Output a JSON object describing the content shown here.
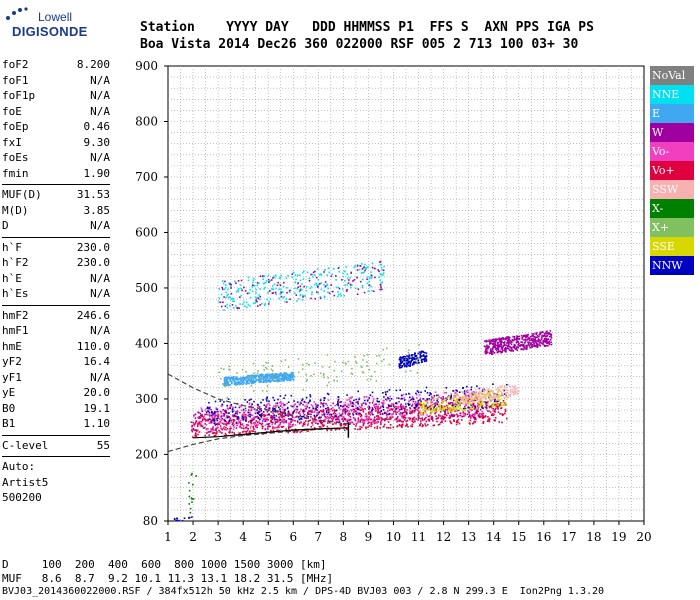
{
  "logo": {
    "line1": "Lowell",
    "line2": "DIGISONDE"
  },
  "header": {
    "row1": "Station    YYYY DAY   DDD HHMMSS P1  FFS S  AXN PPS IGA PS",
    "row2": "Boa Vista 2014 Dec26 360 022000 RSF 005 2 713 100 03+ 30"
  },
  "params": {
    "group1": [
      {
        "name": "foF2",
        "value": "8.200"
      },
      {
        "name": "foF1",
        "value": "N/A"
      },
      {
        "name": "foF1p",
        "value": "N/A"
      },
      {
        "name": "foE",
        "value": "N/A"
      },
      {
        "name": "foEp",
        "value": "0.46"
      },
      {
        "name": "fxI",
        "value": "9.30"
      },
      {
        "name": "foEs",
        "value": "N/A"
      },
      {
        "name": "fmin",
        "value": "1.90"
      }
    ],
    "group2": [
      {
        "name": "MUF(D)",
        "value": "31.53"
      },
      {
        "name": "M(D)",
        "value": "3.85"
      },
      {
        "name": "D",
        "value": "N/A"
      }
    ],
    "group3": [
      {
        "name": "h`F",
        "value": "230.0"
      },
      {
        "name": "h`F2",
        "value": "230.0"
      },
      {
        "name": "h`E",
        "value": "N/A"
      },
      {
        "name": "h`Es",
        "value": "N/A"
      }
    ],
    "group4": [
      {
        "name": "hmF2",
        "value": "246.6"
      },
      {
        "name": "hmF1",
        "value": "N/A"
      },
      {
        "name": "hmE",
        "value": "110.0"
      },
      {
        "name": "yF2",
        "value": "16.4"
      },
      {
        "name": "yF1",
        "value": "N/A"
      },
      {
        "name": "yE",
        "value": "20.0"
      },
      {
        "name": "B0",
        "value": "19.1"
      },
      {
        "name": "B1",
        "value": "1.10"
      }
    ],
    "group5": [
      {
        "name": "C-level",
        "value": "55"
      }
    ],
    "auto": [
      "Auto:",
      "Artist5",
      "500200"
    ]
  },
  "legend": [
    {
      "label": "NoVal",
      "bg": "#808080",
      "fg": "#ffffff"
    },
    {
      "label": "NNE",
      "bg": "#00e0f0",
      "fg": "#ffffff"
    },
    {
      "label": "E",
      "bg": "#40a8f0",
      "fg": "#ffffff"
    },
    {
      "label": "W",
      "bg": "#a000a0",
      "fg": "#ffffff"
    },
    {
      "label": "Vo-",
      "bg": "#f040c0",
      "fg": "#ffffff"
    },
    {
      "label": "Vo+",
      "bg": "#e00040",
      "fg": "#ffffff"
    },
    {
      "label": "SSW",
      "bg": "#f8b0b0",
      "fg": "#ffffff"
    },
    {
      "label": "X-",
      "bg": "#008000",
      "fg": "#ffffff"
    },
    {
      "label": "X+",
      "bg": "#80c060",
      "fg": "#ffffff"
    },
    {
      "label": "SSE",
      "bg": "#d8d800",
      "fg": "#ffffff"
    },
    {
      "label": "NNW",
      "bg": "#0000c0",
      "fg": "#ffffff"
    }
  ],
  "footer": {
    "d_row": "D     100  200  400  600  800 1000 1500 3000 [km]",
    "muf_row": "MUF   8.6  8.7  9.2 10.1 11.3 13.1 18.2 31.5 [MHz]",
    "file_row": "BVJ03_2014360022000.RSF / 384fx512h 50 kHz 2.5 km / DPS-4D BVJ03 003 / 2.8 N 299.3 E  Ion2Png 1.3.20"
  },
  "chart_data": {
    "type": "scatter",
    "xlim": [
      1,
      20
    ],
    "ylim": [
      80,
      900
    ],
    "x_ticks": [
      "1",
      "2",
      "3",
      "4",
      "5",
      "6",
      "7",
      "8",
      "9",
      "10",
      "11",
      "12",
      "13",
      "14",
      "15",
      "16",
      "17",
      "18",
      "19",
      "20"
    ],
    "y_ticks": [
      "80",
      "200",
      "300",
      "400",
      "500",
      "600",
      "700",
      "800",
      "900"
    ],
    "grid": true,
    "clusters": [
      {
        "series": "Vo+",
        "x_range": [
          1.9,
          14.5
        ],
        "y_range": [
          232,
          300
        ],
        "count": 900
      },
      {
        "series": "W",
        "x_range": [
          1.9,
          13.5
        ],
        "y_range": [
          240,
          310
        ],
        "count": 500
      },
      {
        "series": "Vo-",
        "x_range": [
          2.0,
          14.0
        ],
        "y_range": [
          240,
          320
        ],
        "count": 500
      },
      {
        "series": "NNW",
        "x_range": [
          2.5,
          14.5
        ],
        "y_range": [
          255,
          330
        ],
        "count": 350
      },
      {
        "series": "E",
        "x_range": [
          3.2,
          6.0
        ],
        "y_range": [
          325,
          350
        ],
        "count": 450
      },
      {
        "series": "NNW",
        "x_range": [
          10.2,
          11.3
        ],
        "y_range": [
          355,
          390
        ],
        "count": 160
      },
      {
        "series": "W",
        "x_range": [
          13.6,
          16.3
        ],
        "y_range": [
          380,
          425
        ],
        "count": 450
      },
      {
        "series": "SSE",
        "x_range": [
          11.0,
          14.5
        ],
        "y_range": [
          270,
          320
        ],
        "count": 220
      },
      {
        "series": "SSW",
        "x_range": [
          12.5,
          15.0
        ],
        "y_range": [
          290,
          330
        ],
        "count": 160
      },
      {
        "series": "X+",
        "x_range": [
          3.0,
          11.0
        ],
        "y_range": [
          300,
          400
        ],
        "count": 120
      },
      {
        "series": "NNE",
        "x_range": [
          3.0,
          9.6
        ],
        "y_range": [
          460,
          550
        ],
        "count": 280
      },
      {
        "series": "W",
        "x_range": [
          3.0,
          9.6
        ],
        "y_range": [
          460,
          550
        ],
        "count": 120
      },
      {
        "series": "X-",
        "x_range": [
          1.8,
          2.1
        ],
        "y_range": [
          80,
          200
        ],
        "count": 15
      },
      {
        "series": "NNW",
        "x_range": [
          1.2,
          2.0
        ],
        "y_range": [
          80,
          90
        ],
        "count": 12
      }
    ],
    "profile_upper": [
      [
        1.0,
        345
      ],
      [
        2.0,
        320
      ],
      [
        3.0,
        300
      ],
      [
        4.0,
        288
      ],
      [
        5.0,
        280
      ],
      [
        6.0,
        270
      ],
      [
        7.0,
        262
      ],
      [
        8.2,
        255
      ]
    ],
    "profile_lower": [
      [
        1.0,
        205
      ],
      [
        2.0,
        218
      ],
      [
        3.0,
        228
      ],
      [
        4.0,
        234
      ],
      [
        5.0,
        238
      ],
      [
        6.0,
        242
      ],
      [
        7.0,
        245
      ],
      [
        8.2,
        248
      ]
    ],
    "vertical_mark": {
      "x": 8.2,
      "y_range": [
        230,
        258
      ]
    },
    "trace": [
      [
        2.0,
        230
      ],
      [
        3.0,
        232
      ],
      [
        4.0,
        236
      ],
      [
        5.0,
        240
      ],
      [
        6.0,
        244
      ],
      [
        7.0,
        246
      ],
      [
        8.2,
        248
      ]
    ]
  }
}
